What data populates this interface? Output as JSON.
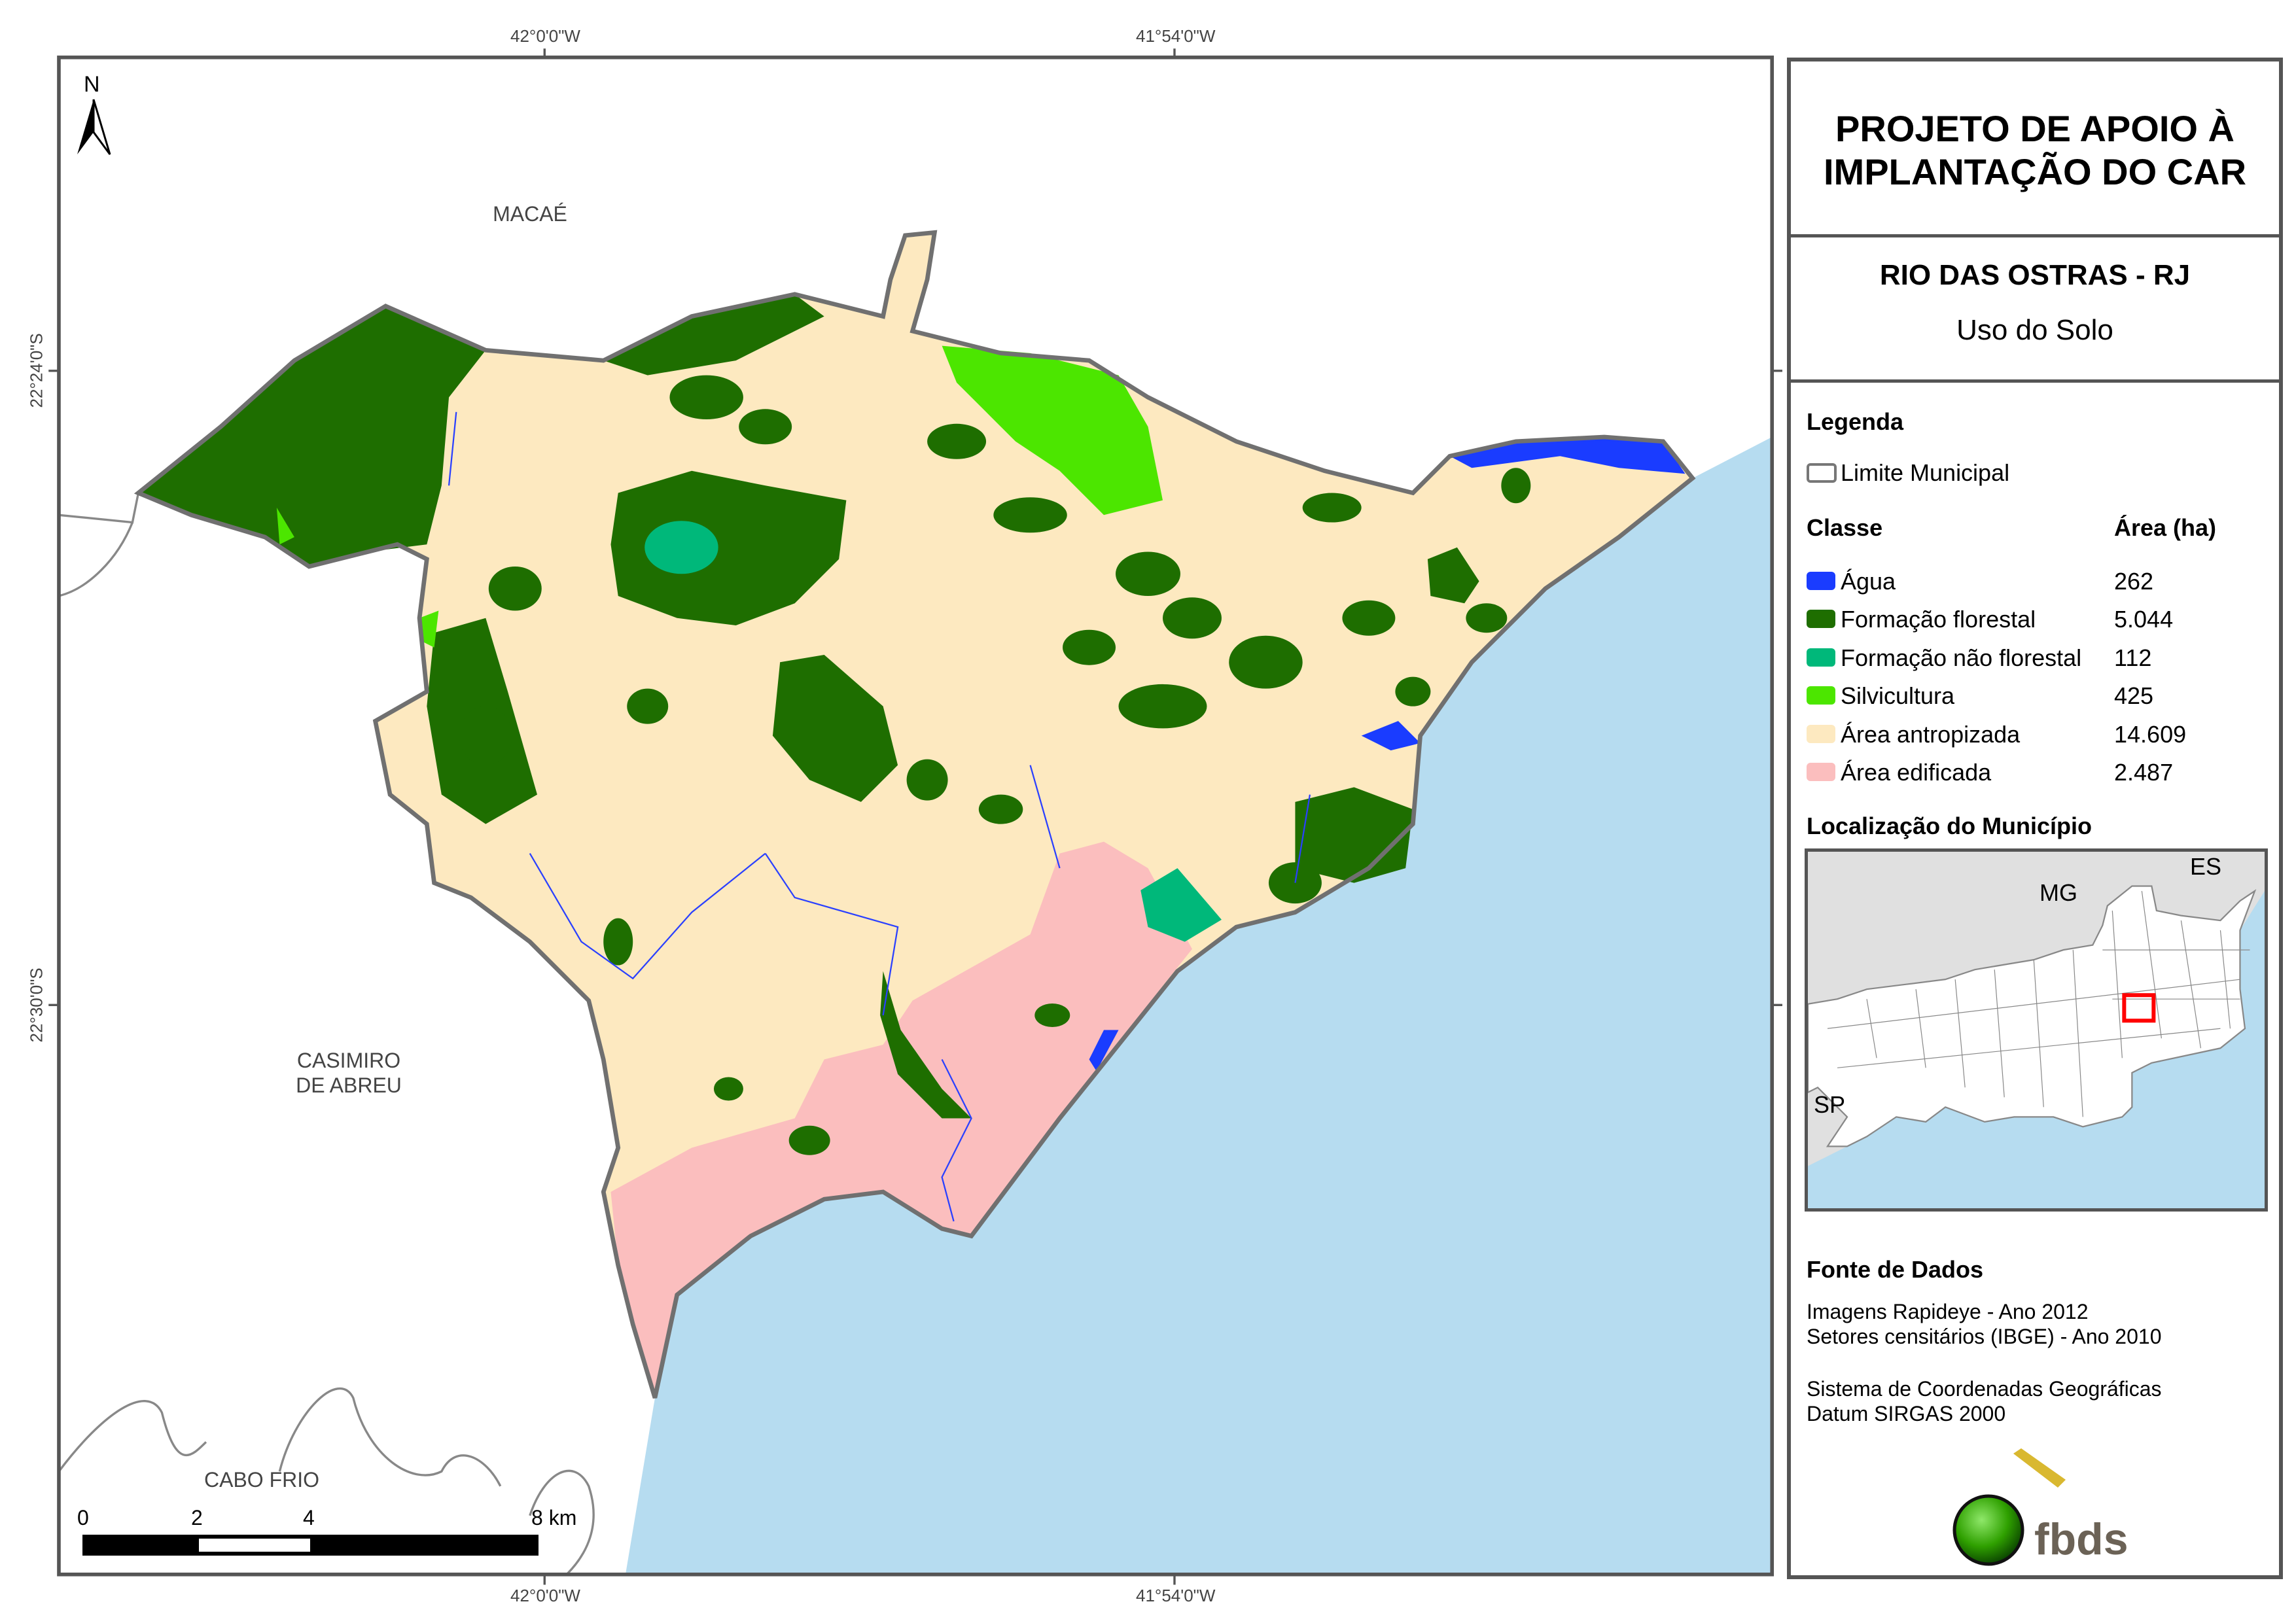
{
  "header": {
    "title_line1": "PROJETO DE APOIO À",
    "title_line2": "IMPLANTAÇÃO DO CAR",
    "municipality": "RIO DAS OSTRAS - RJ",
    "theme": "Uso do Solo"
  },
  "legend": {
    "title": "Legenda",
    "boundary_label": "Limite Municipal",
    "class_header": "Classe",
    "area_header": "Área (ha)",
    "classes": [
      {
        "label": "Água",
        "area": "262",
        "color": "#1a3cff"
      },
      {
        "label": "Formação florestal",
        "area": "5.044",
        "color": "#1e6e00"
      },
      {
        "label": "Formação não florestal",
        "area": "112",
        "color": "#00b87a"
      },
      {
        "label": "Silvicultura",
        "area": "425",
        "color": "#4ce600"
      },
      {
        "label": "Área antropizada",
        "area": "14.609",
        "color": "#fde9c0"
      },
      {
        "label": "Área edificada",
        "area": "2.487",
        "color": "#fbbebe"
      }
    ]
  },
  "location": {
    "title": "Localização do Município",
    "labels": {
      "es": "ES",
      "mg": "MG",
      "sp": "SP"
    }
  },
  "sources": {
    "title": "Fonte de Dados",
    "line1": "Imagens Rapideye - Ano 2012",
    "line2": "Setores censitários (IBGE) - Ano 2010",
    "line3": "Sistema de Coordenadas Geográficas",
    "line4": "Datum SIRGAS 2000"
  },
  "logo": {
    "text": "fbds"
  },
  "map": {
    "north_label": "N",
    "coords": {
      "lon1": "42°0'0\"W",
      "lon2": "41°54'0\"W",
      "lat1": "22°24'0\"S",
      "lat2": "22°30'0\"S"
    },
    "places": {
      "macae": "MACAÉ",
      "casimiro_1": "CASIMIRO",
      "casimiro_2": "DE ABREU",
      "cabo_frio": "CABO FRIO"
    },
    "scale": {
      "labels": [
        "0",
        "2",
        "4",
        "8 km"
      ]
    },
    "colors": {
      "ocean": "#b6dcf0",
      "boundary": "#707070"
    }
  }
}
